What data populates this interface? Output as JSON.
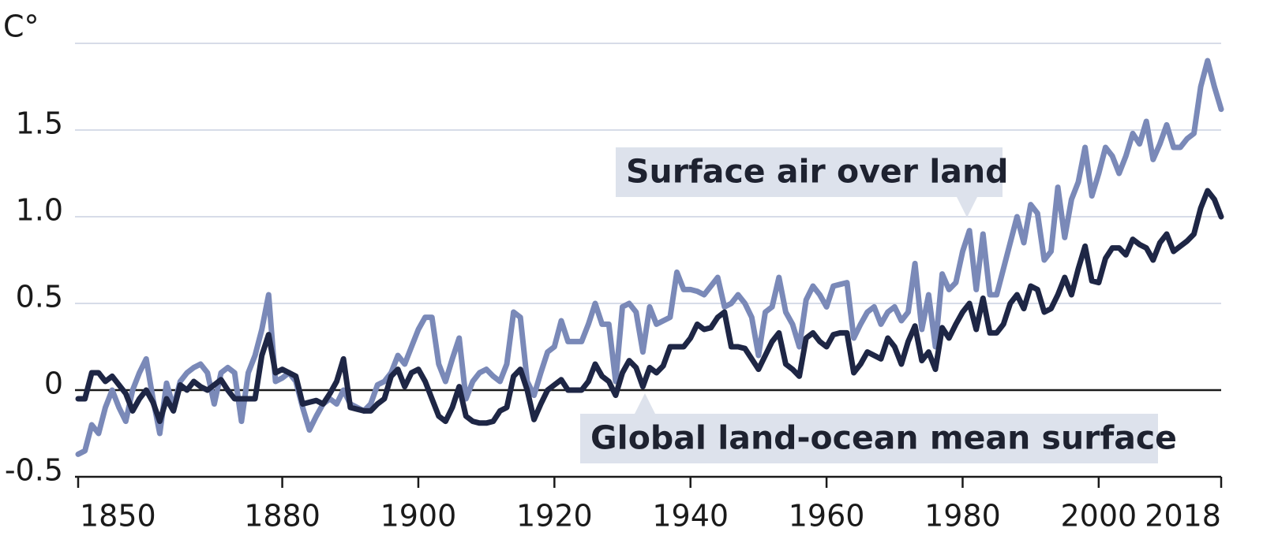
{
  "chart_data": {
    "type": "line",
    "y_label": "C°",
    "x": [
      1850,
      1851,
      1852,
      1853,
      1854,
      1855,
      1856,
      1857,
      1858,
      1859,
      1860,
      1861,
      1862,
      1863,
      1864,
      1865,
      1866,
      1867,
      1868,
      1869,
      1870,
      1871,
      1872,
      1873,
      1874,
      1875,
      1876,
      1877,
      1878,
      1879,
      1880,
      1881,
      1882,
      1883,
      1884,
      1885,
      1886,
      1887,
      1888,
      1889,
      1890,
      1891,
      1892,
      1893,
      1894,
      1895,
      1896,
      1897,
      1898,
      1899,
      1900,
      1901,
      1902,
      1903,
      1904,
      1905,
      1906,
      1907,
      1908,
      1909,
      1910,
      1911,
      1912,
      1913,
      1914,
      1915,
      1916,
      1917,
      1918,
      1919,
      1920,
      1921,
      1922,
      1923,
      1924,
      1925,
      1926,
      1927,
      1928,
      1929,
      1930,
      1931,
      1932,
      1933,
      1934,
      1935,
      1936,
      1937,
      1938,
      1939,
      1940,
      1941,
      1942,
      1943,
      1944,
      1945,
      1946,
      1947,
      1948,
      1949,
      1950,
      1951,
      1952,
      1953,
      1954,
      1955,
      1956,
      1957,
      1958,
      1959,
      1960,
      1961,
      1962,
      1963,
      1964,
      1965,
      1966,
      1967,
      1968,
      1969,
      1970,
      1971,
      1972,
      1973,
      1974,
      1975,
      1976,
      1977,
      1978,
      1979,
      1980,
      1981,
      1982,
      1983,
      1984,
      1985,
      1986,
      1987,
      1988,
      1989,
      1990,
      1991,
      1992,
      1993,
      1994,
      1995,
      1996,
      1997,
      1998,
      1999,
      2000,
      2001,
      2002,
      2003,
      2004,
      2005,
      2006,
      2007,
      2008,
      2009,
      2010,
      2011,
      2012,
      2013,
      2014,
      2015,
      2016,
      2017,
      2018
    ],
    "series": [
      {
        "name": "Surface air over land",
        "color": "#7a89b8",
        "values": [
          -0.37,
          -0.35,
          -0.2,
          -0.25,
          -0.1,
          0.0,
          -0.1,
          -0.18,
          0.0,
          0.1,
          0.18,
          -0.05,
          -0.25,
          0.04,
          -0.1,
          0.05,
          0.1,
          0.13,
          0.15,
          0.1,
          -0.08,
          0.1,
          0.13,
          0.1,
          -0.18,
          0.1,
          0.2,
          0.35,
          0.55,
          0.05,
          0.07,
          0.1,
          0.05,
          -0.1,
          -0.23,
          -0.15,
          -0.08,
          -0.05,
          -0.08,
          0.0,
          -0.08,
          -0.1,
          -0.12,
          -0.08,
          0.03,
          0.05,
          0.1,
          0.2,
          0.15,
          0.25,
          0.35,
          0.42,
          0.42,
          0.15,
          0.05,
          0.18,
          0.3,
          -0.05,
          0.05,
          0.1,
          0.12,
          0.08,
          0.05,
          0.15,
          0.45,
          0.42,
          0.05,
          -0.03,
          0.1,
          0.22,
          0.25,
          0.4,
          0.28,
          0.28,
          0.28,
          0.38,
          0.5,
          0.38,
          0.38,
          0.05,
          0.48,
          0.5,
          0.45,
          0.22,
          0.48,
          0.38,
          0.4,
          0.42,
          0.68,
          0.58,
          0.58,
          0.57,
          0.55,
          0.6,
          0.65,
          0.48,
          0.5,
          0.55,
          0.5,
          0.42,
          0.2,
          0.45,
          0.48,
          0.65,
          0.45,
          0.38,
          0.25,
          0.52,
          0.6,
          0.55,
          0.48,
          0.6,
          0.61,
          0.62,
          0.3,
          0.38,
          0.45,
          0.48,
          0.38,
          0.45,
          0.48,
          0.4,
          0.45,
          0.73,
          0.35,
          0.55,
          0.25,
          0.67,
          0.58,
          0.62,
          0.8,
          0.92,
          0.58,
          0.9,
          0.55,
          0.55,
          0.7,
          0.85,
          1.0,
          0.85,
          1.07,
          1.02,
          0.75,
          0.8,
          1.17,
          0.88,
          1.1,
          1.2,
          1.4,
          1.12,
          1.25,
          1.4,
          1.35,
          1.25,
          1.35,
          1.48,
          1.42,
          1.55,
          1.33,
          1.42,
          1.53,
          1.4,
          1.4,
          1.45,
          1.48,
          1.75,
          1.9,
          1.75,
          1.62
        ]
      },
      {
        "name": "Global land-ocean mean surface",
        "color": "#1e2645",
        "values": [
          -0.05,
          -0.05,
          0.1,
          0.1,
          0.05,
          0.08,
          0.03,
          -0.02,
          -0.12,
          -0.05,
          0.0,
          -0.07,
          -0.18,
          -0.05,
          -0.12,
          0.03,
          0.0,
          0.05,
          0.02,
          0.0,
          0.03,
          0.06,
          0.0,
          -0.05,
          -0.05,
          -0.05,
          -0.05,
          0.2,
          0.32,
          0.1,
          0.12,
          0.1,
          0.08,
          -0.08,
          -0.07,
          -0.06,
          -0.08,
          -0.02,
          0.05,
          0.18,
          -0.1,
          -0.11,
          -0.12,
          -0.12,
          -0.08,
          -0.05,
          0.08,
          0.12,
          0.02,
          0.1,
          0.12,
          0.05,
          -0.05,
          -0.15,
          -0.18,
          -0.1,
          0.02,
          -0.15,
          -0.18,
          -0.19,
          -0.19,
          -0.18,
          -0.12,
          -0.1,
          0.08,
          0.12,
          0.0,
          -0.17,
          -0.08,
          0.0,
          0.03,
          0.06,
          0.0,
          0.0,
          0.0,
          0.05,
          0.15,
          0.08,
          0.05,
          -0.03,
          0.1,
          0.17,
          0.13,
          0.02,
          0.13,
          0.1,
          0.14,
          0.25,
          0.25,
          0.25,
          0.3,
          0.38,
          0.35,
          0.36,
          0.42,
          0.45,
          0.25,
          0.25,
          0.24,
          0.18,
          0.12,
          0.2,
          0.28,
          0.33,
          0.15,
          0.12,
          0.08,
          0.3,
          0.33,
          0.28,
          0.25,
          0.32,
          0.33,
          0.33,
          0.1,
          0.15,
          0.22,
          0.2,
          0.18,
          0.3,
          0.25,
          0.15,
          0.28,
          0.37,
          0.17,
          0.22,
          0.12,
          0.36,
          0.3,
          0.38,
          0.45,
          0.5,
          0.35,
          0.53,
          0.33,
          0.33,
          0.38,
          0.5,
          0.55,
          0.47,
          0.6,
          0.58,
          0.45,
          0.47,
          0.55,
          0.65,
          0.55,
          0.7,
          0.83,
          0.63,
          0.62,
          0.76,
          0.82,
          0.82,
          0.78,
          0.87,
          0.84,
          0.82,
          0.75,
          0.85,
          0.9,
          0.8,
          0.83,
          0.86,
          0.9,
          1.05,
          1.15,
          1.1,
          1.0
        ]
      }
    ],
    "xlim": [
      1850,
      2018
    ],
    "xticks": [
      1850,
      1880,
      1900,
      1920,
      1940,
      1960,
      1980,
      2000,
      2018
    ],
    "ylim": [
      -0.5,
      2.0
    ],
    "yticks": [
      -0.5,
      0,
      0.5,
      {
        "value": 1,
        "label": "1.0"
      },
      1.5
    ],
    "grid": true
  }
}
